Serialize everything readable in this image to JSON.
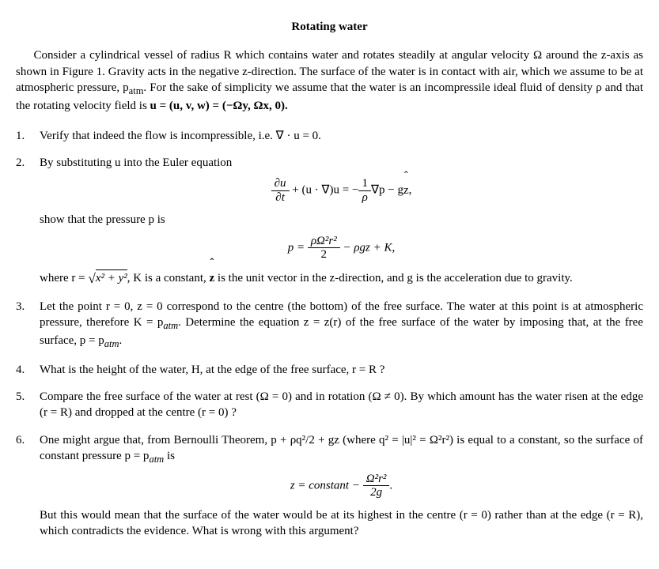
{
  "title": "Rotating water",
  "intro": {
    "p1": "Consider a cylindrical vessel of radius R which contains water and rotates steadily at angular velocity Ω around the z-axis as shown in Figure 1. Gravity acts in the negative z-direction. The surface of the water is in contact with air, which we assume to be at atmospheric pressure, p",
    "sub1": "atm",
    "p2": ". For the sake of simplicity we assume that the water is an incompressile ideal fluid of density ρ and that the rotating velocity field is ",
    "p3": "u = (u, v, w) = (−Ωy, Ωx, 0)."
  },
  "q1": "Verify that indeed the flow is incompressible, i.e. ∇ · u = 0.",
  "q2": {
    "a": "By substituting u into the Euler equation",
    "eq_lhs_num": "∂u",
    "eq_lhs_den": "∂t",
    "eq_mid": " + (u · ∇)u = −",
    "eq_rhs_num": "1",
    "eq_rhs_den": "ρ",
    "eq_rhs2": "∇p − g",
    "eq_zhat": "z",
    "eq_end": ",",
    "b": "show that the pressure p is",
    "eq2_lhs": "p = ",
    "eq2_num": "ρΩ²r²",
    "eq2_den": "2",
    "eq2_rhs": " − ρgz + K,",
    "c1": "where r = ",
    "c_sqrt": "x² + y²",
    "c2": ", K is a constant, ",
    "c_zhat": "z",
    "c3": " is the unit vector in the z-direction, and g is the acceleration due to gravity."
  },
  "q3": {
    "a": "Let the point r = 0, z = 0 correspond to the centre (the bottom) of the free surface. The water at this point is at atmospheric pressure, therefore K = p",
    "sub1": "atm",
    "b": ". Determine the equation z = z(r) of the free surface of the water by imposing that, at the free surface, p = p",
    "sub2": "atm",
    "c": "."
  },
  "q4": "What is the height of the water, H, at the edge of the free surface, r = R ?",
  "q5": "Compare the free surface of the water at rest (Ω = 0) and in rotation (Ω ≠ 0). By which amount has the water risen at the edge (r = R) and dropped at the centre (r = 0) ?",
  "q6": {
    "a": "One might argue that, from Bernoulli Theorem, p + ρq²/2 + gz (where q² = |u|² = Ω²r²) is equal to a constant, so the surface of constant pressure p = p",
    "sub1": "atm",
    "b": " is",
    "eq_lhs": "z = constant  −  ",
    "eq_num": "Ω²r²",
    "eq_den": "2g",
    "eq_end": ".",
    "c": "But this would mean that the surface of the water would be at its highest in the centre (r = 0) rather than at the edge (r = R), which contradicts the evidence. What is wrong with this argument?"
  },
  "style": {
    "text_color": "#000000",
    "background_color": "#ffffff",
    "font_family": "Computer Modern / Georgia serif",
    "title_fontsize": 15,
    "body_fontsize": 15,
    "line_height": 1.35
  }
}
